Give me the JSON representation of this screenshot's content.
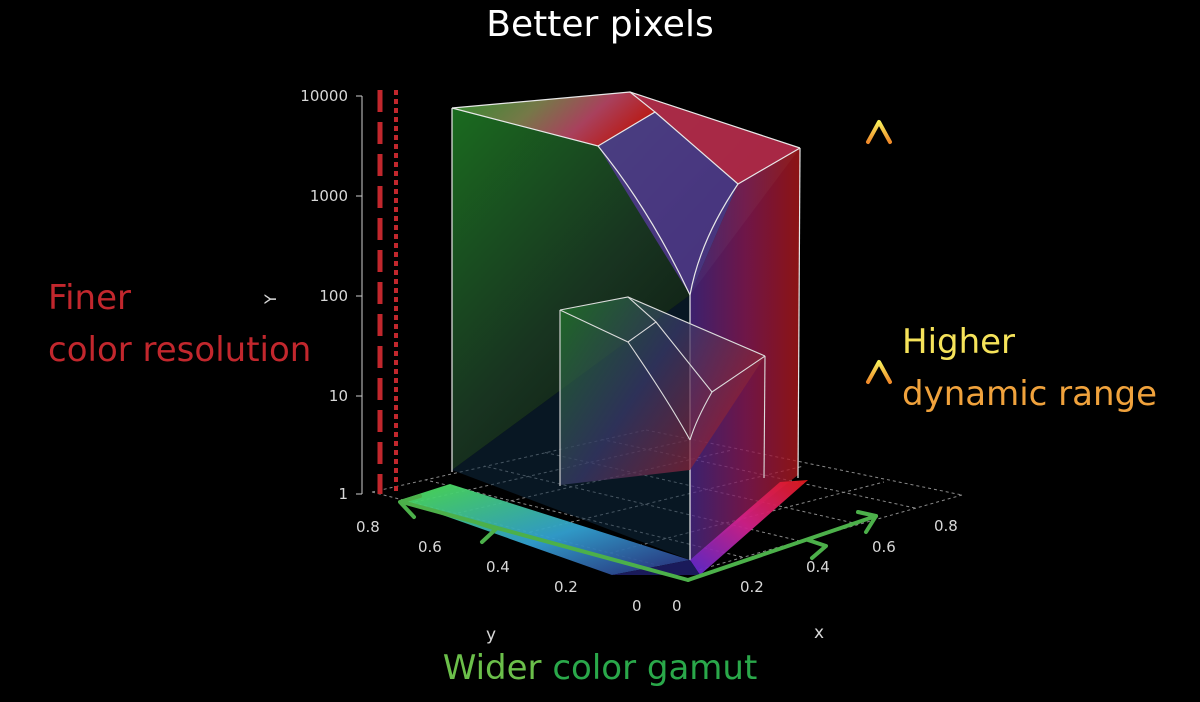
{
  "title": "Better pixels",
  "left_label": {
    "line1": "Finer",
    "line2": "color resolution"
  },
  "right_label": {
    "line1": "Higher",
    "line2": "dynamic range"
  },
  "bottom_label": {
    "word1": "Wider",
    "word2": "color gamut"
  },
  "axes": {
    "y_axis_label": "Y",
    "x_label": "x",
    "ylabel": "y",
    "vertical_ticks": [
      "10000",
      "1000",
      "100",
      "10",
      "1"
    ],
    "y_ticks": [
      "0.8",
      "0.6",
      "0.4",
      "0.2",
      "0"
    ],
    "x_ticks": [
      "0",
      "0.2",
      "0.4",
      "0.6",
      "0.8"
    ]
  },
  "colors": {
    "resolution": "#c2272d",
    "dynamic_range": "#f6e35a",
    "gamut": "#2aa84a"
  }
}
